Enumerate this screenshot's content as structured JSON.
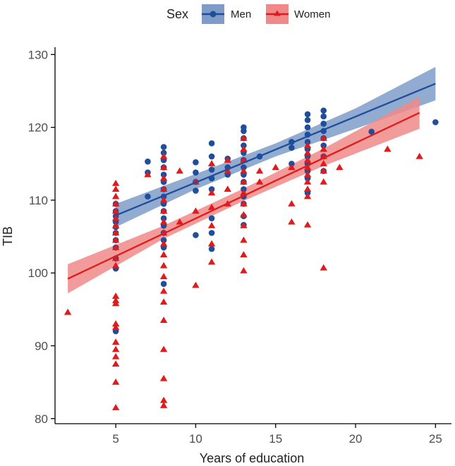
{
  "chart_data": {
    "type": "scatter",
    "title": "",
    "xlabel": "Years of education",
    "ylabel": "TIB",
    "xlim": [
      1.2,
      26.0
    ],
    "ylim": [
      79.3,
      131.0
    ],
    "xticks": [
      5,
      10,
      15,
      20,
      25
    ],
    "yticks": [
      80,
      90,
      100,
      110,
      120,
      130
    ],
    "grid": false,
    "legend": {
      "title": "Sex",
      "position": "top"
    },
    "series": [
      {
        "name": "Men",
        "color": "#1f4e9a",
        "band_color": "#7f9cc8",
        "marker": "circle",
        "fit": {
          "x": [
            5,
            25
          ],
          "y": [
            107.9,
            126.0
          ]
        },
        "ci": {
          "x": [
            5,
            10,
            15,
            20,
            25
          ],
          "lower": [
            106.3,
            111.5,
            116.0,
            119.8,
            123.7
          ],
          "upper": [
            109.5,
            113.6,
            117.8,
            122.6,
            128.3
          ]
        },
        "points": [
          [
            5,
            100.6
          ],
          [
            5,
            102.0
          ],
          [
            5,
            103.5
          ],
          [
            5,
            104.5
          ],
          [
            5,
            105.5
          ],
          [
            5,
            106.3
          ],
          [
            5,
            107.0
          ],
          [
            5,
            107.8
          ],
          [
            5,
            108.5
          ],
          [
            5,
            109.5
          ],
          [
            5,
            92.0
          ],
          [
            7,
            110.5
          ],
          [
            7,
            113.8
          ],
          [
            7,
            115.3
          ],
          [
            8,
            98.5
          ],
          [
            8,
            103.5
          ],
          [
            8,
            104.5
          ],
          [
            8,
            105.5
          ],
          [
            8,
            106.5
          ],
          [
            8,
            107.5
          ],
          [
            8,
            108.5
          ],
          [
            8,
            109.5
          ],
          [
            8,
            110.5
          ],
          [
            8,
            111.5
          ],
          [
            8,
            112.5
          ],
          [
            8,
            113.5
          ],
          [
            8,
            114.5
          ],
          [
            8,
            115.5
          ],
          [
            8,
            116.5
          ],
          [
            8,
            117.3
          ],
          [
            10,
            105.2
          ],
          [
            10,
            111.3
          ],
          [
            10,
            112.5
          ],
          [
            10,
            113.8
          ],
          [
            10,
            115.2
          ],
          [
            11,
            103.3
          ],
          [
            11,
            105.5
          ],
          [
            11,
            107.5
          ],
          [
            11,
            111.5
          ],
          [
            11,
            113.0
          ],
          [
            11,
            114.2
          ],
          [
            11,
            116.0
          ],
          [
            11,
            117.8
          ],
          [
            12,
            113.5
          ],
          [
            12,
            114.5
          ],
          [
            12,
            115.7
          ],
          [
            13,
            106.6
          ],
          [
            13,
            107.8
          ],
          [
            13,
            109.5
          ],
          [
            13,
            110.5
          ],
          [
            13,
            111.5
          ],
          [
            13,
            112.5
          ],
          [
            13,
            113.5
          ],
          [
            13,
            114.5
          ],
          [
            13,
            115.5
          ],
          [
            13,
            116.5
          ],
          [
            13,
            117.5
          ],
          [
            13,
            118.5
          ],
          [
            13,
            119.5
          ],
          [
            13,
            120.0
          ],
          [
            14,
            116.0
          ],
          [
            16,
            115.0
          ],
          [
            16,
            117.2
          ],
          [
            16,
            118.0
          ],
          [
            17,
            111.0
          ],
          [
            17,
            113.0
          ],
          [
            17,
            114.0
          ],
          [
            17,
            115.0
          ],
          [
            17,
            116.0
          ],
          [
            17,
            117.0
          ],
          [
            17,
            118.0
          ],
          [
            17,
            119.0
          ],
          [
            17,
            120.0
          ],
          [
            17,
            121.0
          ],
          [
            17,
            121.8
          ],
          [
            18,
            114.0
          ],
          [
            18,
            116.0
          ],
          [
            18,
            117.5
          ],
          [
            18,
            118.5
          ],
          [
            18,
            119.5
          ],
          [
            18,
            120.5
          ],
          [
            18,
            121.5
          ],
          [
            18,
            122.3
          ],
          [
            21,
            119.4
          ],
          [
            25,
            120.7
          ]
        ]
      },
      {
        "name": "Women",
        "color": "#e01b1b",
        "band_color": "#f08a8a",
        "marker": "triangle",
        "fit": {
          "x": [
            2,
            24
          ],
          "y": [
            99.2,
            122.0
          ]
        },
        "ci": {
          "x": [
            2,
            8,
            13,
            18,
            24
          ],
          "lower": [
            97.2,
            104.7,
            109.9,
            114.7,
            119.8
          ],
          "upper": [
            101.2,
            106.5,
            111.6,
            117.1,
            124.2
          ]
        },
        "points": [
          [
            2,
            94.6
          ],
          [
            5,
            81.5
          ],
          [
            5,
            85.0
          ],
          [
            5,
            87.5
          ],
          [
            5,
            88.5
          ],
          [
            5,
            89.5
          ],
          [
            5,
            90.5
          ],
          [
            5,
            92.5
          ],
          [
            5,
            93.0
          ],
          [
            5,
            95.8
          ],
          [
            5,
            96.2
          ],
          [
            5,
            96.8
          ],
          [
            5,
            101.0
          ],
          [
            5,
            102.0
          ],
          [
            5,
            103.5
          ],
          [
            5,
            104.5
          ],
          [
            5,
            105.5
          ],
          [
            5,
            106.5
          ],
          [
            5,
            107.5
          ],
          [
            5,
            108.5
          ],
          [
            5,
            109.5
          ],
          [
            5,
            110.5
          ],
          [
            5,
            111.5
          ],
          [
            5,
            112.3
          ],
          [
            7,
            113.5
          ],
          [
            8,
            81.8
          ],
          [
            8,
            82.5
          ],
          [
            8,
            85.5
          ],
          [
            8,
            89.5
          ],
          [
            8,
            93.5
          ],
          [
            8,
            96.0
          ],
          [
            8,
            97.5
          ],
          [
            8,
            99.5
          ],
          [
            8,
            101.0
          ],
          [
            8,
            102.5
          ],
          [
            8,
            104.0
          ],
          [
            8,
            105.5
          ],
          [
            8,
            107.0
          ],
          [
            8,
            108.5
          ],
          [
            8,
            110.0
          ],
          [
            8,
            111.5
          ],
          [
            8,
            113.0
          ],
          [
            8,
            114.5
          ],
          [
            8,
            116.0
          ],
          [
            9,
            114.0
          ],
          [
            9,
            107.0
          ],
          [
            10,
            98.3
          ],
          [
            10,
            108.5
          ],
          [
            10,
            112.5
          ],
          [
            11,
            101.5
          ],
          [
            11,
            104.0
          ],
          [
            11,
            106.5
          ],
          [
            11,
            109.0
          ],
          [
            11,
            111.0
          ],
          [
            11,
            115.0
          ],
          [
            12,
            109.5
          ],
          [
            12,
            111.5
          ],
          [
            12,
            114.0
          ],
          [
            12,
            115.5
          ],
          [
            13,
            100.3
          ],
          [
            13,
            102.5
          ],
          [
            13,
            104.5
          ],
          [
            13,
            106.5
          ],
          [
            13,
            108.0
          ],
          [
            13,
            109.5
          ],
          [
            13,
            111.0
          ],
          [
            13,
            112.5
          ],
          [
            13,
            114.0
          ],
          [
            13,
            115.5
          ],
          [
            13,
            117.0
          ],
          [
            13,
            118.5
          ],
          [
            14,
            112.5
          ],
          [
            14,
            114.0
          ],
          [
            15,
            114.5
          ],
          [
            16,
            107.0
          ],
          [
            16,
            109.5
          ],
          [
            16,
            114.5
          ],
          [
            17,
            106.6
          ],
          [
            17,
            110.5
          ],
          [
            17,
            111.5
          ],
          [
            17,
            112.5
          ],
          [
            17,
            113.5
          ],
          [
            17,
            114.5
          ],
          [
            17,
            115.5
          ],
          [
            17,
            116.5
          ],
          [
            17,
            117.5
          ],
          [
            18,
            100.7
          ],
          [
            18,
            112.5
          ],
          [
            18,
            114.0
          ],
          [
            18,
            115.0
          ],
          [
            18,
            116.0
          ],
          [
            18,
            117.0
          ],
          [
            18,
            118.5
          ],
          [
            19,
            114.5
          ],
          [
            22,
            117.0
          ],
          [
            24,
            116.0
          ]
        ]
      }
    ]
  }
}
